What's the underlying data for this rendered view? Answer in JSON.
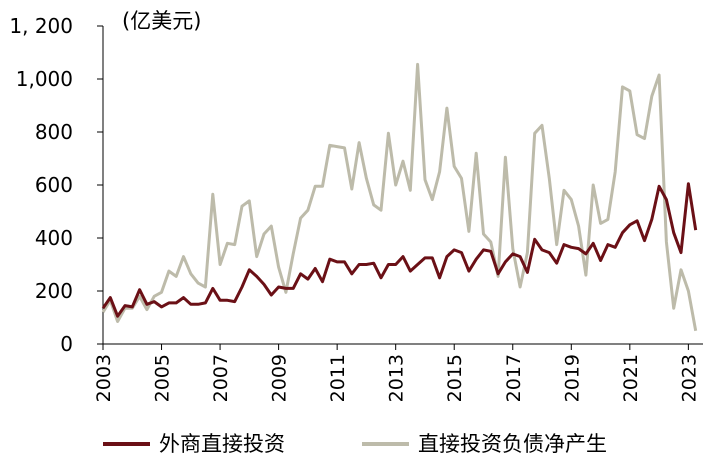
{
  "chart_data": {
    "type": "line",
    "title": "",
    "unit_label": "(亿美元)",
    "xlabel": "",
    "ylabel": "",
    "xlim": [
      2003.0,
      2023.5
    ],
    "ylim": [
      0,
      1200
    ],
    "y_ticks": [
      0,
      200,
      400,
      600,
      800,
      1000,
      1200
    ],
    "y_tick_labels": [
      "0",
      "200",
      "400",
      "600",
      "800",
      "1,000",
      "1, 200"
    ],
    "x_ticks": [
      2003,
      2005,
      2007,
      2009,
      2011,
      2013,
      2015,
      2017,
      2019,
      2021,
      2023
    ],
    "x_tick_labels": [
      "2003",
      "2005",
      "2007",
      "2009",
      "2011",
      "2013",
      "2015",
      "2017",
      "2019",
      "2021",
      "2023"
    ],
    "grid": false,
    "legend_position": "bottom",
    "series": [
      {
        "name": "外商直接投资",
        "color": "#6b1016",
        "points": [
          [
            2003.0,
            135
          ],
          [
            2003.25,
            175
          ],
          [
            2003.5,
            105
          ],
          [
            2003.75,
            145
          ],
          [
            2004.0,
            140
          ],
          [
            2004.25,
            205
          ],
          [
            2004.5,
            150
          ],
          [
            2004.75,
            160
          ],
          [
            2005.0,
            140
          ],
          [
            2005.25,
            155
          ],
          [
            2005.5,
            155
          ],
          [
            2005.75,
            175
          ],
          [
            2006.0,
            150
          ],
          [
            2006.25,
            150
          ],
          [
            2006.5,
            155
          ],
          [
            2006.75,
            210
          ],
          [
            2007.0,
            165
          ],
          [
            2007.25,
            165
          ],
          [
            2007.5,
            160
          ],
          [
            2007.75,
            215
          ],
          [
            2008.0,
            280
          ],
          [
            2008.25,
            255
          ],
          [
            2008.5,
            225
          ],
          [
            2008.75,
            185
          ],
          [
            2009.0,
            215
          ],
          [
            2009.25,
            210
          ],
          [
            2009.5,
            210
          ],
          [
            2009.75,
            265
          ],
          [
            2010.0,
            245
          ],
          [
            2010.25,
            285
          ],
          [
            2010.5,
            235
          ],
          [
            2010.75,
            320
          ],
          [
            2011.0,
            310
          ],
          [
            2011.25,
            310
          ],
          [
            2011.5,
            265
          ],
          [
            2011.75,
            300
          ],
          [
            2012.0,
            300
          ],
          [
            2012.25,
            305
          ],
          [
            2012.5,
            250
          ],
          [
            2012.75,
            300
          ],
          [
            2013.0,
            300
          ],
          [
            2013.25,
            330
          ],
          [
            2013.5,
            275
          ],
          [
            2013.75,
            300
          ],
          [
            2014.0,
            325
          ],
          [
            2014.25,
            325
          ],
          [
            2014.5,
            250
          ],
          [
            2014.75,
            330
          ],
          [
            2015.0,
            355
          ],
          [
            2015.25,
            345
          ],
          [
            2015.5,
            275
          ],
          [
            2015.75,
            320
          ],
          [
            2016.0,
            355
          ],
          [
            2016.25,
            350
          ],
          [
            2016.5,
            265
          ],
          [
            2016.75,
            310
          ],
          [
            2017.0,
            340
          ],
          [
            2017.25,
            330
          ],
          [
            2017.5,
            270
          ],
          [
            2017.75,
            395
          ],
          [
            2018.0,
            355
          ],
          [
            2018.25,
            345
          ],
          [
            2018.5,
            305
          ],
          [
            2018.75,
            375
          ],
          [
            2019.0,
            365
          ],
          [
            2019.25,
            360
          ],
          [
            2019.5,
            340
          ],
          [
            2019.75,
            380
          ],
          [
            2020.0,
            315
          ],
          [
            2020.25,
            375
          ],
          [
            2020.5,
            365
          ],
          [
            2020.75,
            420
          ],
          [
            2021.0,
            450
          ],
          [
            2021.25,
            465
          ],
          [
            2021.5,
            390
          ],
          [
            2021.75,
            470
          ],
          [
            2022.0,
            595
          ],
          [
            2022.25,
            545
          ],
          [
            2022.5,
            420
          ],
          [
            2022.75,
            345
          ],
          [
            2023.0,
            605
          ],
          [
            2023.25,
            430
          ]
        ]
      },
      {
        "name": "直接投资负债净产生",
        "color": "#bdbbaa",
        "points": [
          [
            2003.0,
            120
          ],
          [
            2003.25,
            165
          ],
          [
            2003.5,
            85
          ],
          [
            2003.75,
            135
          ],
          [
            2004.0,
            135
          ],
          [
            2004.25,
            180
          ],
          [
            2004.5,
            130
          ],
          [
            2004.75,
            180
          ],
          [
            2005.0,
            195
          ],
          [
            2005.25,
            275
          ],
          [
            2005.5,
            255
          ],
          [
            2005.75,
            330
          ],
          [
            2006.0,
            265
          ],
          [
            2006.25,
            230
          ],
          [
            2006.5,
            215
          ],
          [
            2006.75,
            565
          ],
          [
            2007.0,
            300
          ],
          [
            2007.25,
            380
          ],
          [
            2007.5,
            375
          ],
          [
            2007.75,
            520
          ],
          [
            2008.0,
            540
          ],
          [
            2008.25,
            330
          ],
          [
            2008.5,
            415
          ],
          [
            2008.75,
            445
          ],
          [
            2009.0,
            290
          ],
          [
            2009.25,
            195
          ],
          [
            2009.5,
            340
          ],
          [
            2009.75,
            475
          ],
          [
            2010.0,
            505
          ],
          [
            2010.25,
            595
          ],
          [
            2010.5,
            595
          ],
          [
            2010.75,
            750
          ],
          [
            2011.0,
            745
          ],
          [
            2011.25,
            740
          ],
          [
            2011.5,
            585
          ],
          [
            2011.75,
            760
          ],
          [
            2012.0,
            625
          ],
          [
            2012.25,
            525
          ],
          [
            2012.5,
            505
          ],
          [
            2012.75,
            795
          ],
          [
            2013.0,
            600
          ],
          [
            2013.25,
            690
          ],
          [
            2013.5,
            580
          ],
          [
            2013.75,
            1055
          ],
          [
            2014.0,
            620
          ],
          [
            2014.25,
            545
          ],
          [
            2014.5,
            650
          ],
          [
            2014.75,
            890
          ],
          [
            2015.0,
            670
          ],
          [
            2015.25,
            625
          ],
          [
            2015.5,
            425
          ],
          [
            2015.75,
            720
          ],
          [
            2016.0,
            415
          ],
          [
            2016.25,
            385
          ],
          [
            2016.5,
            255
          ],
          [
            2016.75,
            705
          ],
          [
            2017.0,
            360
          ],
          [
            2017.25,
            215
          ],
          [
            2017.5,
            345
          ],
          [
            2017.75,
            795
          ],
          [
            2018.0,
            825
          ],
          [
            2018.25,
            625
          ],
          [
            2018.5,
            375
          ],
          [
            2018.75,
            580
          ],
          [
            2019.0,
            545
          ],
          [
            2019.25,
            445
          ],
          [
            2019.5,
            260
          ],
          [
            2019.75,
            600
          ],
          [
            2020.0,
            455
          ],
          [
            2020.25,
            470
          ],
          [
            2020.5,
            650
          ],
          [
            2020.75,
            970
          ],
          [
            2021.0,
            955
          ],
          [
            2021.25,
            790
          ],
          [
            2021.5,
            775
          ],
          [
            2021.75,
            935
          ],
          [
            2022.0,
            1015
          ],
          [
            2022.25,
            385
          ],
          [
            2022.5,
            135
          ],
          [
            2022.75,
            280
          ],
          [
            2023.0,
            200
          ],
          [
            2023.25,
            50
          ]
        ]
      }
    ]
  }
}
